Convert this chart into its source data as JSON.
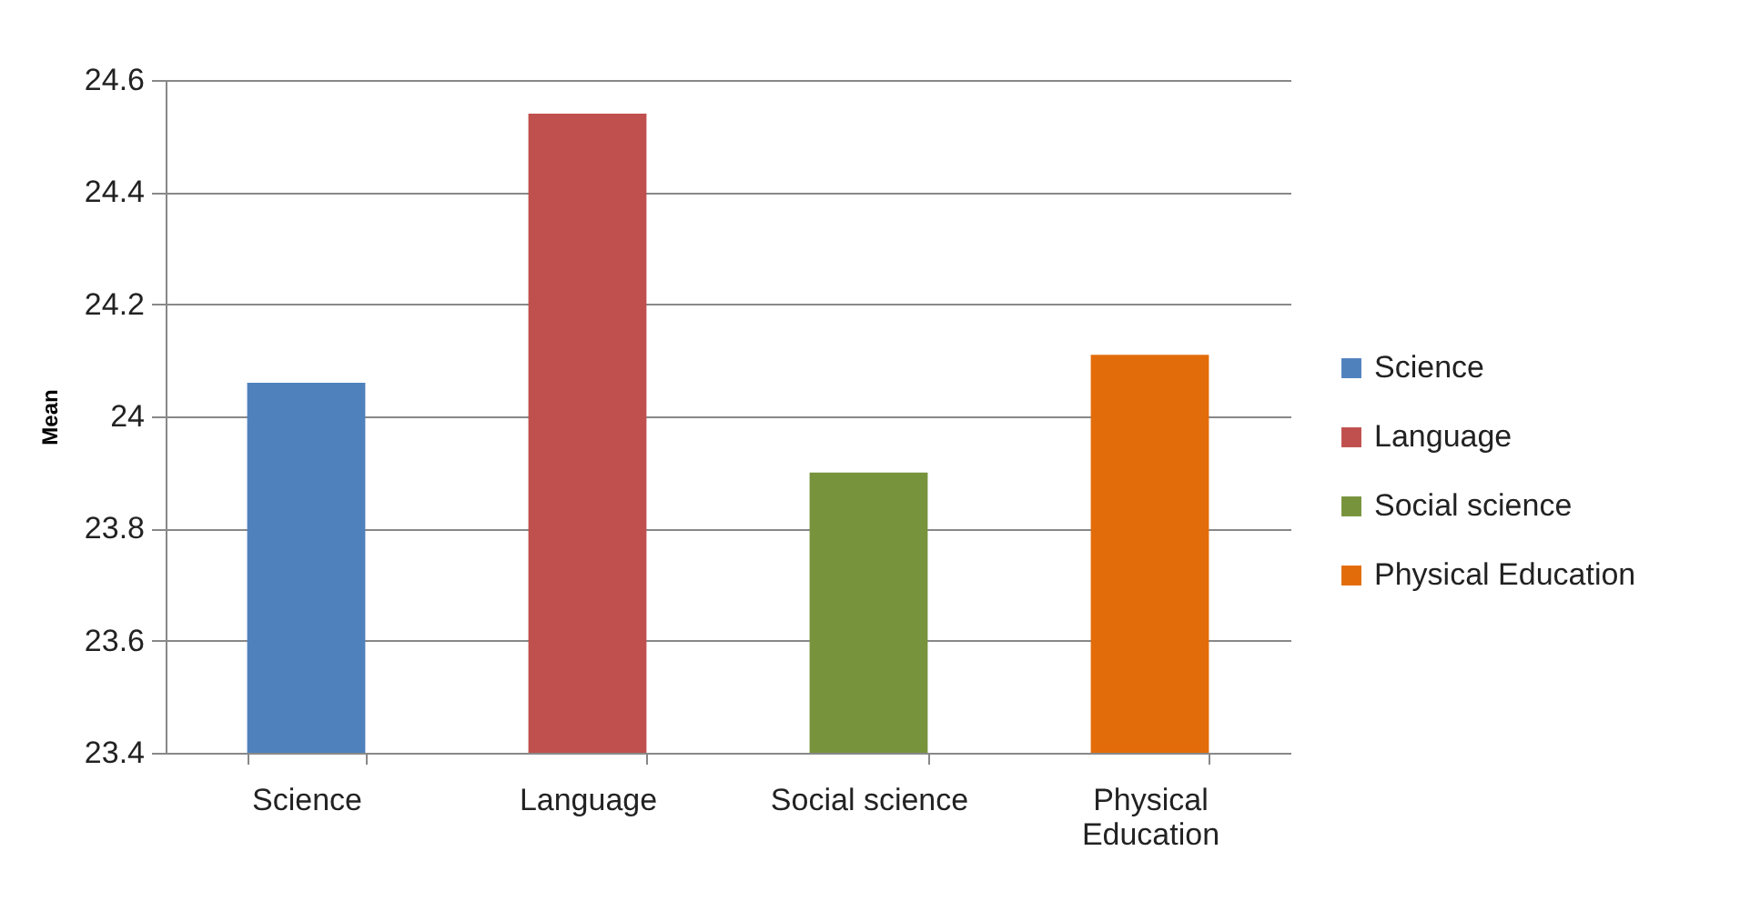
{
  "chart_data": {
    "type": "bar",
    "ylabel": "Mean",
    "categories": [
      "Science",
      "Language",
      "Social science",
      "Physical Education"
    ],
    "series": [
      {
        "name": "Science",
        "color": "#4f81bd",
        "values": [
          24.06,
          null,
          null,
          null
        ]
      },
      {
        "name": "Language",
        "color": "#c0504d",
        "values": [
          null,
          24.54,
          null,
          null
        ]
      },
      {
        "name": "Social science",
        "color": "#77933c",
        "values": [
          null,
          null,
          23.9,
          null
        ]
      },
      {
        "name": "Physical Education",
        "color": "#e36c0a",
        "values": [
          null,
          null,
          null,
          24.11
        ]
      }
    ],
    "ylim": [
      23.4,
      24.6
    ],
    "yticks": [
      23.4,
      23.6,
      23.8,
      24,
      24.2,
      24.4,
      24.6
    ],
    "grid": "y",
    "legend": "right"
  }
}
